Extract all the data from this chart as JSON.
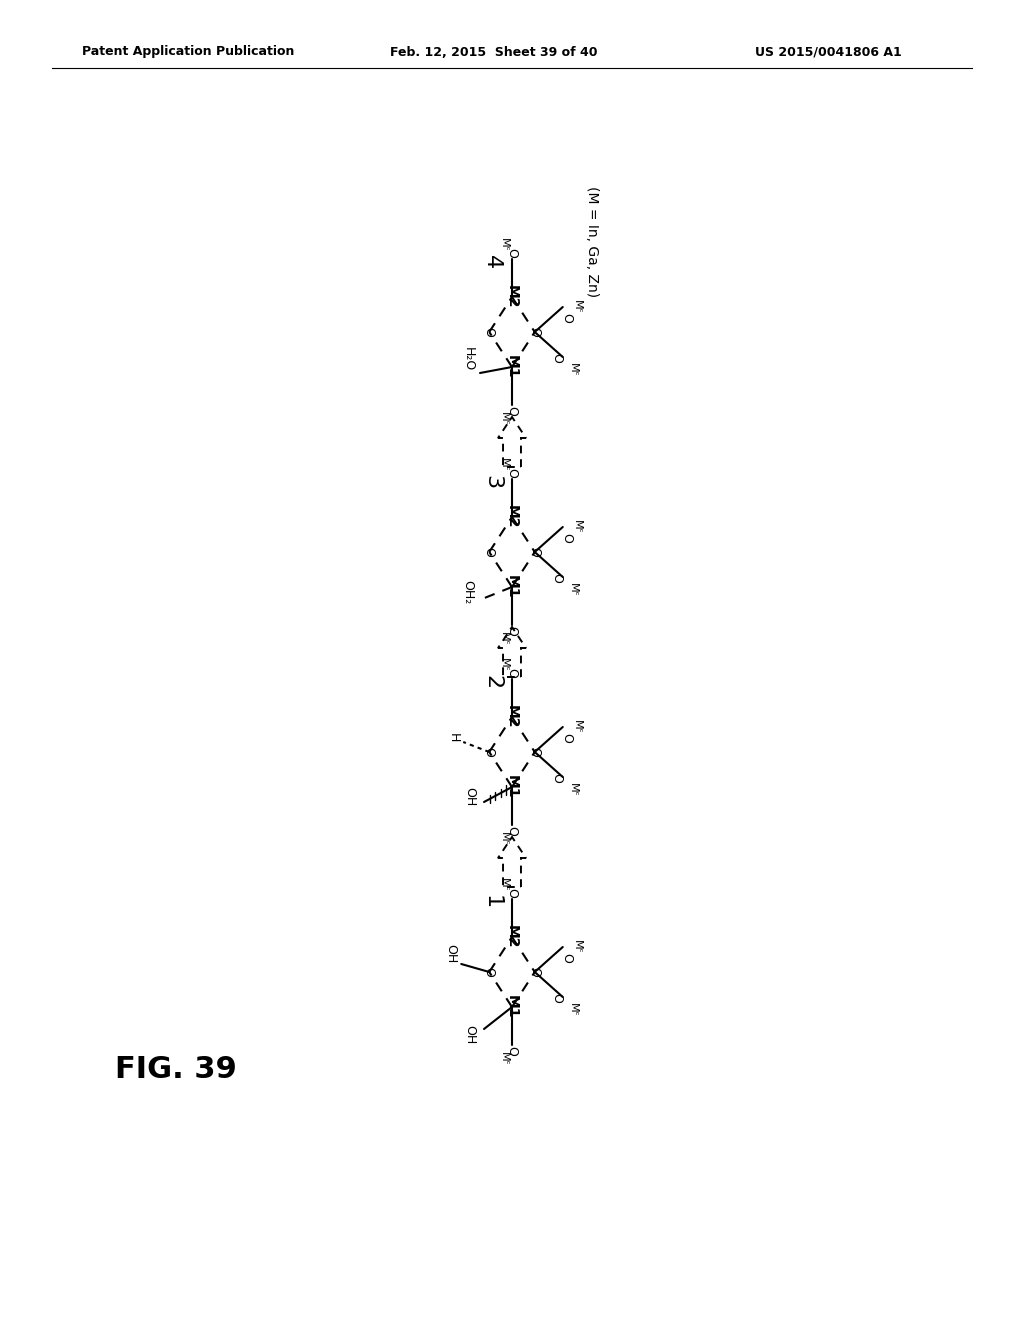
{
  "header_left": "Patent Application Publication",
  "header_mid": "Feb. 12, 2015  Sheet 39 of 40",
  "header_right": "US 2015/0041806 A1",
  "fig_label": "FIG. 39",
  "note": "(M = In, Ga, Zn)",
  "background": "#ffffff",
  "text_color": "#000000"
}
